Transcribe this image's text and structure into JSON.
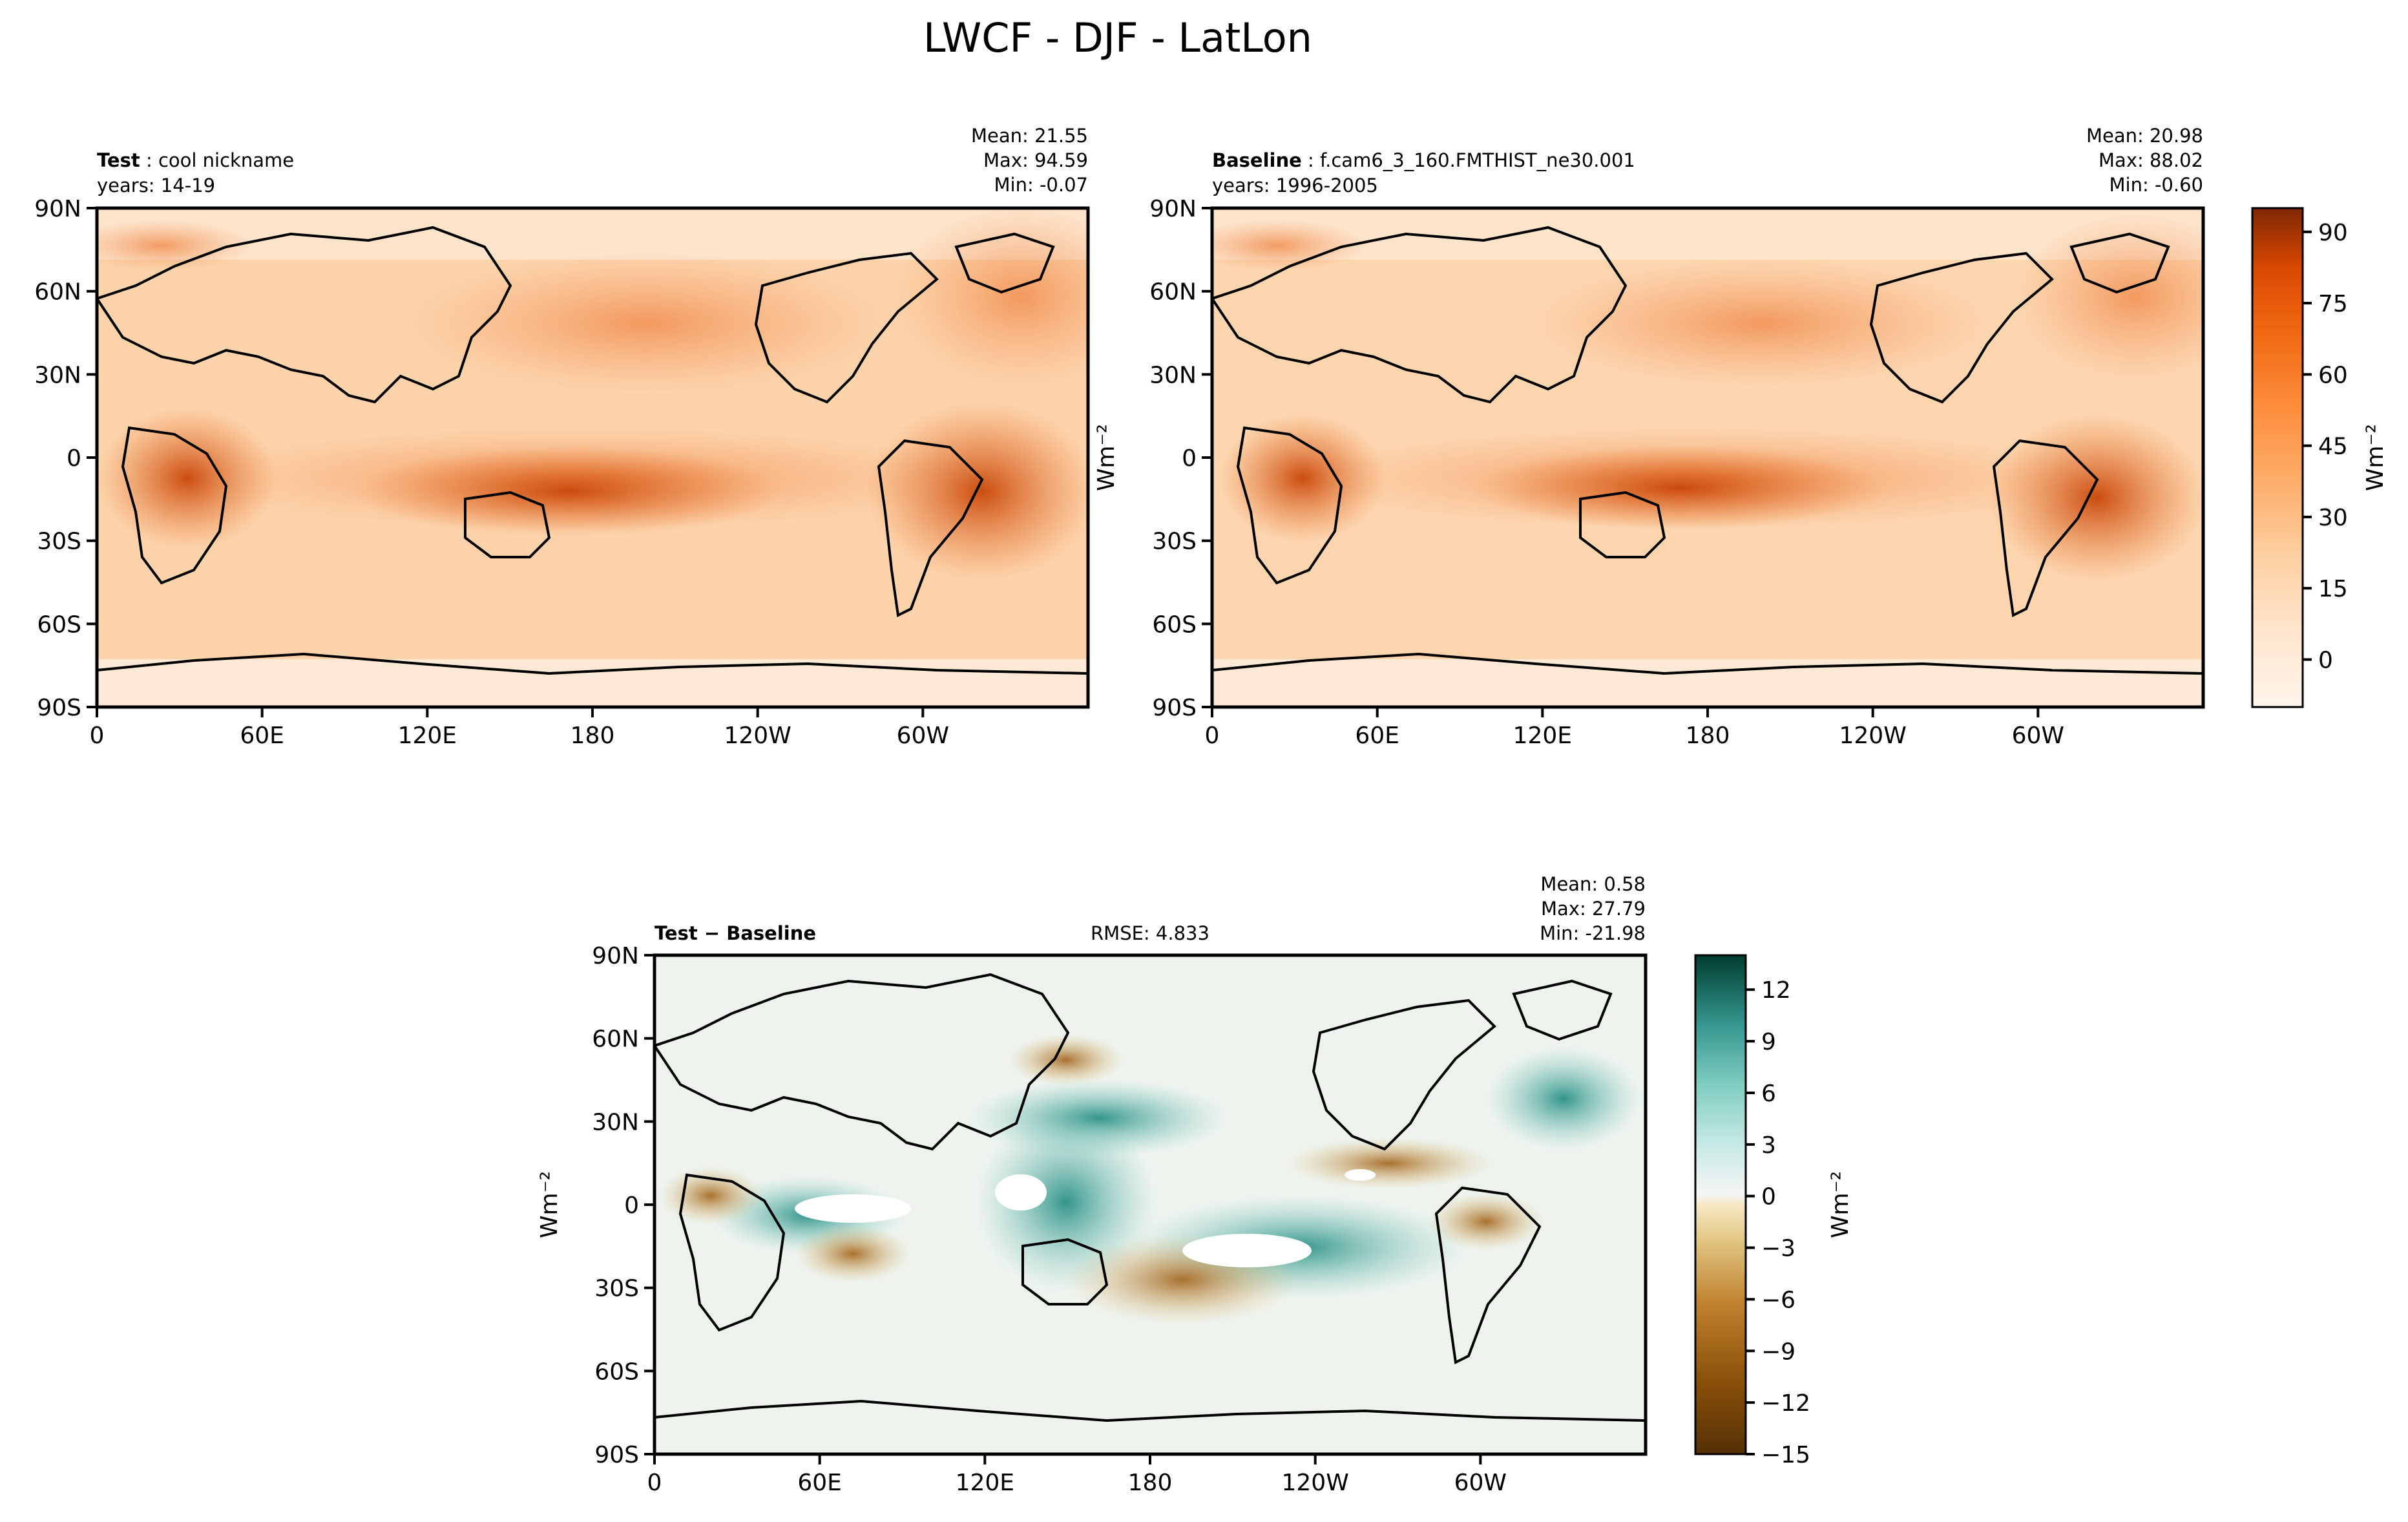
{
  "figure": {
    "title": "LWCF - DJF - LatLon"
  },
  "chart_data": [
    {
      "type": "heatmap",
      "panel": "test",
      "label_bold": "Test",
      "label_text": "cool nickname",
      "years": "years: 14-19",
      "stats": [
        "Mean: 21.55",
        "Max: 94.59",
        "Min: -0.07"
      ],
      "x_ticks": [
        "0",
        "60E",
        "120E",
        "180",
        "120W",
        "60W"
      ],
      "x_tick_values": [
        0,
        60,
        120,
        180,
        240,
        300
      ],
      "y_ticks": [
        "90N",
        "60N",
        "30N",
        "0",
        "30S",
        "60S",
        "90S"
      ],
      "y_tick_values": [
        90,
        60,
        30,
        0,
        -30,
        -60,
        -90
      ],
      "xlim": [
        0,
        360
      ],
      "ylim": [
        -90,
        90
      ],
      "units": "Wm⁻²"
    },
    {
      "type": "heatmap",
      "panel": "baseline",
      "label_bold": "Baseline",
      "label_text": "f.cam6_3_160.FMTHIST_ne30.001",
      "years": "years: 1996-2005",
      "stats": [
        "Mean: 20.98",
        "Max: 88.02",
        "Min: -0.60"
      ],
      "x_ticks": [
        "0",
        "60E",
        "120E",
        "180",
        "120W",
        "60W"
      ],
      "x_tick_values": [
        0,
        60,
        120,
        180,
        240,
        300
      ],
      "y_ticks": [
        "90N",
        "60N",
        "30N",
        "0",
        "30S",
        "60S",
        "90S"
      ],
      "y_tick_values": [
        90,
        60,
        30,
        0,
        -30,
        -60,
        -90
      ],
      "xlim": [
        0,
        360
      ],
      "ylim": [
        -90,
        90
      ],
      "ylabel": "Wm⁻²",
      "colorbar": {
        "ticks": [
          "90",
          "75",
          "60",
          "45",
          "30",
          "15",
          "0"
        ],
        "tick_values": [
          90,
          75,
          60,
          45,
          30,
          15,
          0
        ],
        "range": [
          -10,
          95
        ],
        "label": "Wm⁻²",
        "colormap": "Oranges",
        "color_low": "#fff5eb",
        "color_high": "#7f2704"
      }
    },
    {
      "type": "heatmap",
      "panel": "difference",
      "label_bold": "Test − Baseline",
      "rmse": "RMSE: 4.833",
      "stats": [
        "Mean:  0.58",
        "Max: 27.79",
        "Min: -21.98"
      ],
      "x_ticks": [
        "0",
        "60E",
        "120E",
        "180",
        "120W",
        "60W"
      ],
      "x_tick_values": [
        0,
        60,
        120,
        180,
        240,
        300
      ],
      "y_ticks": [
        "90N",
        "60N",
        "30N",
        "0",
        "30S",
        "60S",
        "90S"
      ],
      "y_tick_values": [
        90,
        60,
        30,
        0,
        -30,
        -60,
        -90
      ],
      "xlim": [
        0,
        360
      ],
      "ylim": [
        -90,
        90
      ],
      "ylabel": "Wm⁻²",
      "colorbar": {
        "ticks": [
          "12",
          "9",
          "6",
          "3",
          "0",
          "−3",
          "−6",
          "−9",
          "−12",
          "−15"
        ],
        "tick_values": [
          12,
          9,
          6,
          3,
          0,
          -3,
          -6,
          -9,
          -12,
          -15
        ],
        "range": [
          -15,
          14
        ],
        "label": "Wm⁻²",
        "colormap": "BrBG",
        "color_low": "#543005",
        "color_mid": "#f5f5f5",
        "color_high": "#003c30"
      }
    }
  ]
}
